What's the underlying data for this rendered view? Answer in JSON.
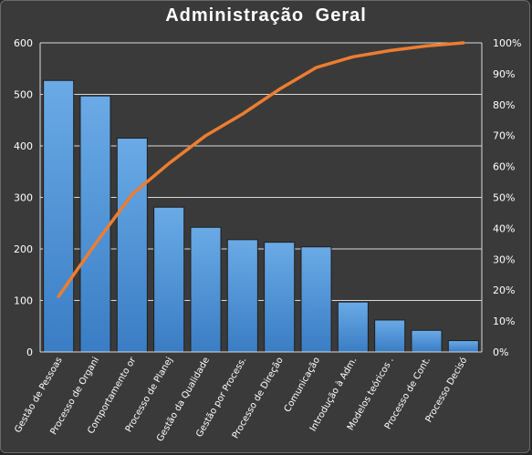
{
  "chart_data": {
    "type": "bar",
    "title": "Administração  Geral",
    "categories": [
      "Gestão de Pessoas",
      "Processo de Organi",
      "Comportamento or",
      "Processo de Planej",
      "Gestão da Qualidade",
      "Gestão por Process.",
      "Processo de Direção",
      "Comunicação",
      "Introdução à Adm.",
      "Modelos teóricos .",
      "Processo de Cont.",
      "Processo Decisó"
    ],
    "series": [
      {
        "type": "bar",
        "axis": "left",
        "values": [
          527,
          497,
          415,
          281,
          242,
          218,
          213,
          204,
          97,
          62,
          42,
          22
        ]
      },
      {
        "type": "line",
        "axis": "right",
        "values": [
          0.18,
          0.35,
          0.51,
          0.61,
          0.7,
          0.77,
          0.85,
          0.92,
          0.955,
          0.975,
          0.99,
          1.0
        ]
      }
    ],
    "y_left": {
      "lim": [
        0,
        600
      ],
      "ticks": [
        "0",
        "100",
        "200",
        "300",
        "400",
        "500",
        "600"
      ]
    },
    "y_right": {
      "lim": [
        0,
        1
      ],
      "ticks": [
        "0%",
        "10%",
        "20%",
        "30%",
        "40%",
        "50%",
        "60%",
        "70%",
        "80%",
        "90%",
        "100%"
      ]
    },
    "grid": true,
    "colors": {
      "bar": "#5b9bd5",
      "bar_edge": "#1f1f1f",
      "line": "#ed7d31",
      "grid": "#d9d9d9",
      "background": "#3a3a3a",
      "text": "#ffffff"
    }
  }
}
